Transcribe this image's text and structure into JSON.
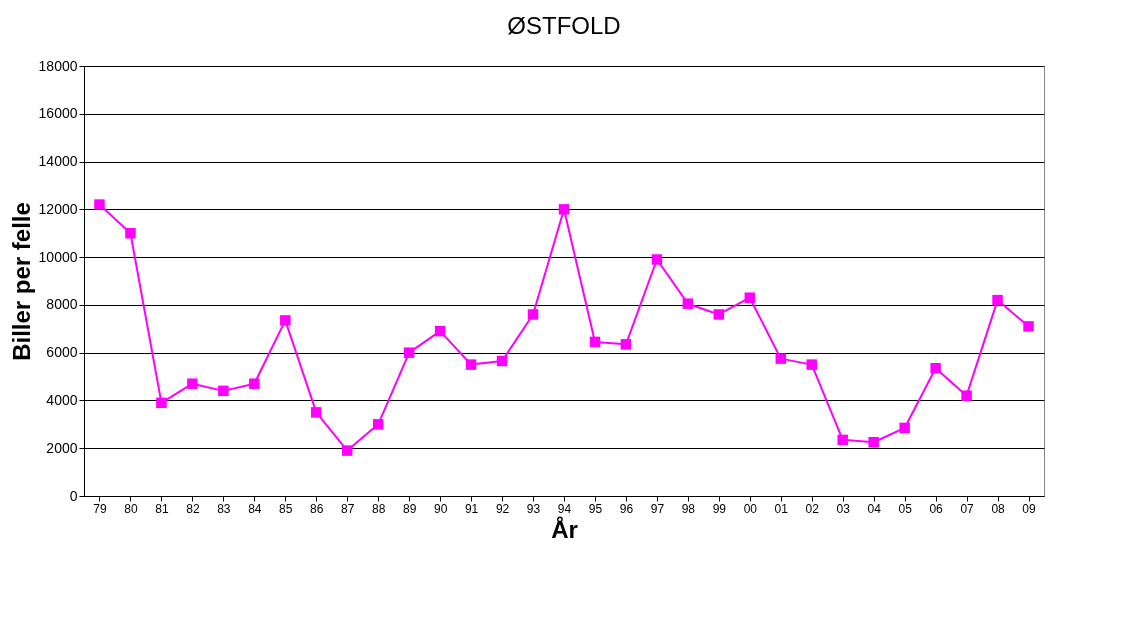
{
  "chart_data": {
    "type": "line",
    "title": "ØSTFOLD",
    "xlabel": "År",
    "ylabel": "Biller per felle",
    "categories": [
      "79",
      "80",
      "81",
      "82",
      "83",
      "84",
      "85",
      "86",
      "87",
      "88",
      "89",
      "90",
      "91",
      "92",
      "93",
      "94",
      "95",
      "96",
      "97",
      "98",
      "99",
      "00",
      "01",
      "02",
      "03",
      "04",
      "05",
      "06",
      "07",
      "08",
      "09"
    ],
    "series": [
      {
        "color": "#ff00ff",
        "values": [
          12200,
          11000,
          3900,
          4700,
          4400,
          4700,
          7350,
          3500,
          1900,
          3000,
          6000,
          6900,
          5500,
          5650,
          7600,
          12000,
          6450,
          6350,
          9900,
          8050,
          7600,
          8300,
          5750,
          5500,
          2350,
          2250,
          2850,
          5350,
          4200,
          8200,
          7100
        ]
      }
    ],
    "ylim": [
      0,
      18000
    ],
    "yticks": [
      0,
      2000,
      4000,
      6000,
      8000,
      10000,
      12000,
      14000,
      16000,
      18000
    ],
    "grid": "y",
    "marker": "square",
    "line_style": "solid"
  }
}
